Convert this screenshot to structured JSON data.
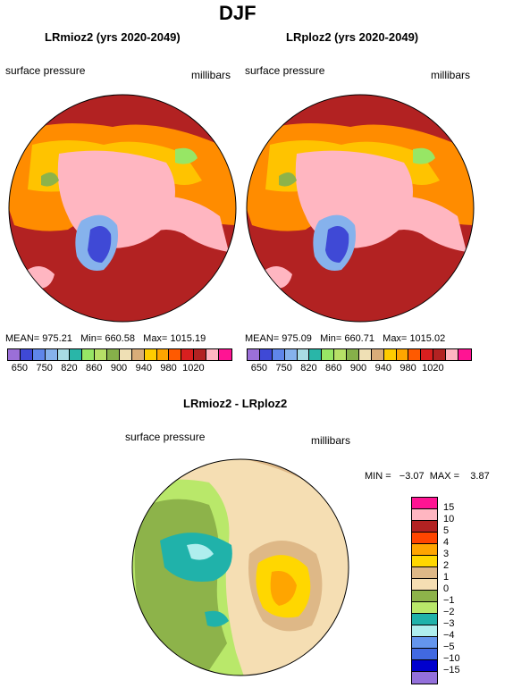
{
  "main_title": "DJF",
  "panels": [
    {
      "title": "LRmioz2 (yrs 2020-2049)",
      "variable": "surface pressure",
      "units": "millibars",
      "mean_label": "MEAN=",
      "mean": "975.21",
      "min_label": "Min=",
      "min": "660.58",
      "max_label": "Max=",
      "max": "1015.19"
    },
    {
      "title": "LRploz2 (yrs 2020-2049)",
      "variable": "surface pressure",
      "units": "millibars",
      "mean_label": "MEAN=",
      "mean": "975.09",
      "min_label": "Min=",
      "min": "660.71",
      "max_label": "Max=",
      "max": "1015.02"
    }
  ],
  "abs_colorbar": {
    "colors": [
      "#9b6fd8",
      "#3f49d6",
      "#5f86ea",
      "#86b2ec",
      "#a9dbe4",
      "#29b6a8",
      "#97e665",
      "#b7e067",
      "#86b04a",
      "#efe0b5",
      "#d9ad79",
      "#ffcc00",
      "#ffa500",
      "#ff5a00",
      "#d81f1f",
      "#b22222",
      "#ffb6c1",
      "#ff1493"
    ],
    "ticks": [
      "650",
      "750",
      "820",
      "860",
      "900",
      "940",
      "980",
      "1020"
    ]
  },
  "diff": {
    "title": "LRmioz2 - LRploz2",
    "variable": "surface pressure",
    "units": "millibars",
    "minmax": "MIN =   −3.07  MAX =    3.87",
    "colorbar": {
      "colors": [
        "#ff1493",
        "#ffb6c1",
        "#b22222",
        "#ff4500",
        "#ffa500",
        "#ffd700",
        "#deb887",
        "#f5deb3",
        "#8db34a",
        "#b9e86a",
        "#20b2aa",
        "#afeeee",
        "#6495ed",
        "#4169e1",
        "#0000cd",
        "#9370db"
      ],
      "ticks": [
        "15",
        "10",
        "5",
        "4",
        "3",
        "2",
        "1",
        "0",
        "−1",
        "−2",
        "−3",
        "−4",
        "−5",
        "−10",
        "−15"
      ]
    }
  }
}
